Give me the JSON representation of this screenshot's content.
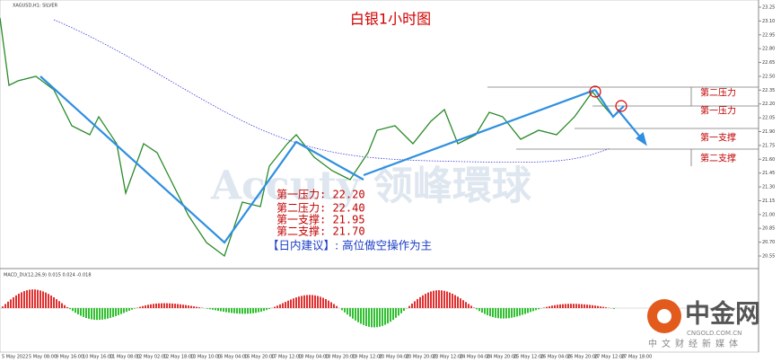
{
  "header": {
    "symbol": "XAGUSD,H1: SILVER",
    "title": "白银1小时图"
  },
  "levels": [
    "第二压力",
    "第一压力",
    "第一支撑",
    "第二支撑"
  ],
  "annotations": [
    "第一压力: 22.20",
    "第二压力: 22.40",
    "第一支撑: 21.95",
    "第二支撑: 21.70"
  ],
  "advice": "【日内建议】: 高位做空操作为主",
  "watermark": "Accuty 领峰環球",
  "price_axis": [
    "23.25",
    "23.10",
    "22.95",
    "22.80",
    "22.65",
    "22.50",
    "22.35",
    "22.20",
    "22.05",
    "21.90",
    "21.75",
    "21.60",
    "21.45",
    "21.30",
    "21.15",
    "21.00",
    "20.85",
    "20.70",
    "20.55"
  ],
  "macd_label": "MACD_DU(12,26,9) 0.015 0.024 -0.018",
  "dates": [
    "5 May 2022",
    "5 May 08:00",
    "9 May 16:00",
    "10 May 16:00",
    "11 May 08:00",
    "12 May 02:00",
    "12 May 18:00",
    "13 May 10:00",
    "16 May 04:00",
    "16 May 20:00",
    "17 May 12:00",
    "18 May 04:00",
    "18 May 20:00",
    "19 May 12:00",
    "20 May 04:00",
    "20 May 20:00",
    "23 May 12:00",
    "24 May 04:00",
    "24 May 20:00",
    "25 May 12:00",
    "26 May 04:00",
    "26 May 20:00",
    "27 May 12:00",
    "27 May 18:00"
  ],
  "logo": {
    "name": "中金网",
    "domain": "CNGOLD.COM.CN",
    "slogan": "中文财经新媒体"
  }
}
